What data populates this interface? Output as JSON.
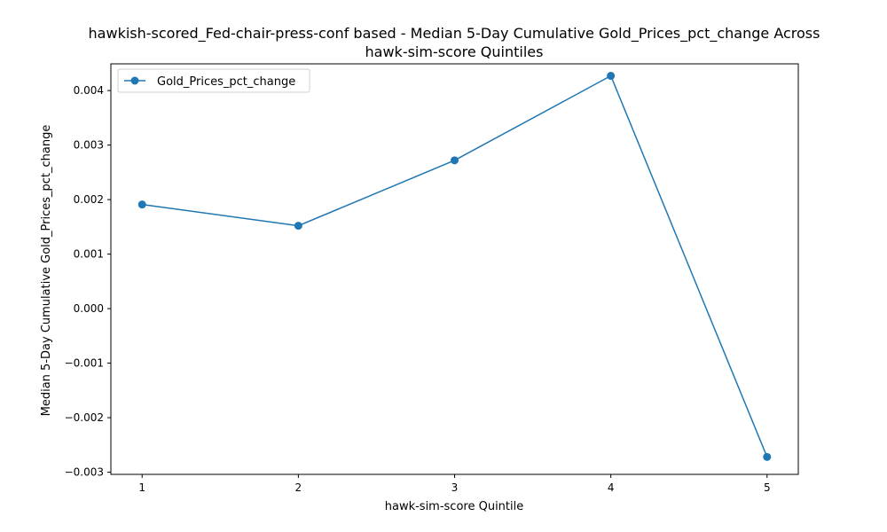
{
  "chart_data": {
    "type": "line",
    "title": "hawkish-scored_Fed-chair-press-conf based - Median 5-Day Cumulative Gold_Prices_pct_change Across hawk-sim-score Quintiles",
    "title_lines": [
      "hawkish-scored_Fed-chair-press-conf based - Median 5-Day Cumulative Gold_Prices_pct_change Across",
      "hawk-sim-score Quintiles"
    ],
    "xlabel": "hawk-sim-score Quintile",
    "ylabel": "Median 5-Day Cumulative Gold_Prices_pct_change",
    "x": [
      1,
      2,
      3,
      4,
      5
    ],
    "xticks": [
      "1",
      "2",
      "3",
      "4",
      "5"
    ],
    "xlim": [
      0.8,
      5.2
    ],
    "ylim": [
      -0.00304,
      0.00449
    ],
    "yticks": [
      -0.003,
      -0.002,
      -0.001,
      0.0,
      0.001,
      0.002,
      0.003,
      0.004
    ],
    "ytick_labels": [
      "−0.003",
      "−0.002",
      "−0.001",
      "0.000",
      "0.001",
      "0.002",
      "0.003",
      "0.004"
    ],
    "series": [
      {
        "name": "Gold_Prices_pct_change",
        "values": [
          0.00191,
          0.00152,
          0.00272,
          0.00427,
          -0.00272
        ],
        "color": "#1f77b4",
        "marker": "circle"
      }
    ],
    "grid": false,
    "legend_position": "top-left"
  }
}
